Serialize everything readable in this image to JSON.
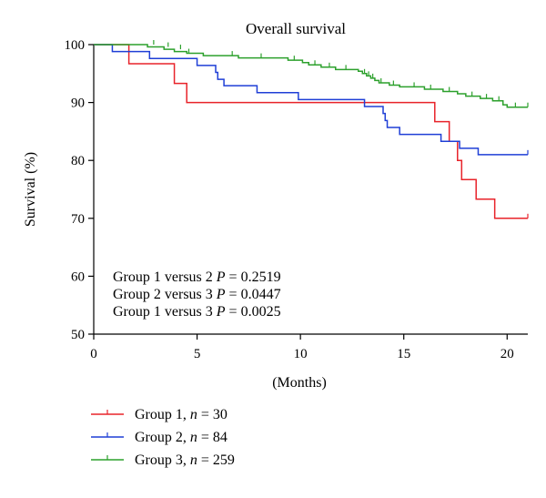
{
  "chart_data": {
    "type": "line",
    "subtype": "kaplan-meier-step",
    "title": "Overall survival",
    "xlabel": "(Months)",
    "ylabel": "Survival (%)",
    "xlim": [
      0,
      21
    ],
    "ylim": [
      50,
      100
    ],
    "x_ticks": [
      0,
      5,
      10,
      15,
      20
    ],
    "y_ticks": [
      50,
      60,
      70,
      80,
      90,
      100
    ],
    "grid": false,
    "legend_position": "bottom-left",
    "annotations": [
      {
        "name": "Group 1 versus 2",
        "pvalue": "0.2519"
      },
      {
        "name": "Group 2 versus 3",
        "pvalue": "0.0447"
      },
      {
        "name": "Group 1 versus 3",
        "pvalue": "0.0025"
      }
    ],
    "annotation_p_label": "P",
    "annotation_eq": "=",
    "series": [
      {
        "name": "Group 1",
        "n": 30,
        "color": "#e8232a",
        "steps": [
          [
            0,
            100
          ],
          [
            1.7,
            96.7
          ],
          [
            3.9,
            93.3
          ],
          [
            4.5,
            90.0
          ],
          [
            16.5,
            86.7
          ],
          [
            17.2,
            83.3
          ],
          [
            17.6,
            80.0
          ],
          [
            17.8,
            76.7
          ],
          [
            18.5,
            73.3
          ],
          [
            19.4,
            70.0
          ],
          [
            21,
            70.0
          ]
        ],
        "censored": [
          [
            21,
            70.0
          ]
        ]
      },
      {
        "name": "Group 2",
        "n": 84,
        "color": "#1f3fd6",
        "steps": [
          [
            0,
            100
          ],
          [
            0.9,
            98.8
          ],
          [
            2.7,
            97.6
          ],
          [
            5.0,
            96.4
          ],
          [
            5.9,
            95.2
          ],
          [
            6.0,
            94.0
          ],
          [
            6.3,
            92.9
          ],
          [
            7.9,
            91.7
          ],
          [
            9.9,
            90.5
          ],
          [
            13.1,
            89.3
          ],
          [
            14.0,
            88.1
          ],
          [
            14.1,
            86.9
          ],
          [
            14.2,
            85.7
          ],
          [
            14.8,
            84.5
          ],
          [
            16.8,
            83.3
          ],
          [
            17.7,
            82.1
          ],
          [
            18.6,
            81.0
          ],
          [
            21,
            81.0
          ]
        ],
        "censored": [
          [
            21,
            81.0
          ]
        ]
      },
      {
        "name": "Group 3",
        "n": 259,
        "color": "#2ca02c",
        "steps": [
          [
            0,
            100
          ],
          [
            2.6,
            99.6
          ],
          [
            3.4,
            99.2
          ],
          [
            3.9,
            98.8
          ],
          [
            4.5,
            98.5
          ],
          [
            5.3,
            98.1
          ],
          [
            7.0,
            97.7
          ],
          [
            9.4,
            97.3
          ],
          [
            10.1,
            96.9
          ],
          [
            10.4,
            96.5
          ],
          [
            11.0,
            96.1
          ],
          [
            11.7,
            95.7
          ],
          [
            12.8,
            95.4
          ],
          [
            13.0,
            95.0
          ],
          [
            13.2,
            94.6
          ],
          [
            13.4,
            94.2
          ],
          [
            13.6,
            93.8
          ],
          [
            13.8,
            93.4
          ],
          [
            14.3,
            93.0
          ],
          [
            14.8,
            92.7
          ],
          [
            16.0,
            92.3
          ],
          [
            16.9,
            91.9
          ],
          [
            17.6,
            91.5
          ],
          [
            18.0,
            91.1
          ],
          [
            18.7,
            90.7
          ],
          [
            19.3,
            90.3
          ],
          [
            19.8,
            89.6
          ],
          [
            20.0,
            89.2
          ],
          [
            21,
            89.2
          ]
        ],
        "censored": [
          [
            2.9,
            100
          ],
          [
            3.6,
            99.6
          ],
          [
            4.2,
            99.2
          ],
          [
            4.6,
            98.5
          ],
          [
            6.7,
            98.1
          ],
          [
            8.1,
            97.7
          ],
          [
            9.7,
            97.3
          ],
          [
            10.7,
            96.5
          ],
          [
            11.4,
            96.1
          ],
          [
            12.2,
            95.7
          ],
          [
            13.1,
            95.0
          ],
          [
            13.3,
            94.6
          ],
          [
            13.5,
            94.2
          ],
          [
            13.9,
            93.4
          ],
          [
            14.5,
            93.0
          ],
          [
            15.5,
            92.7
          ],
          [
            16.3,
            92.3
          ],
          [
            17.2,
            91.9
          ],
          [
            18.3,
            91.1
          ],
          [
            19.0,
            90.7
          ],
          [
            19.6,
            90.3
          ],
          [
            20.4,
            89.2
          ],
          [
            21,
            89.2
          ]
        ]
      }
    ]
  }
}
